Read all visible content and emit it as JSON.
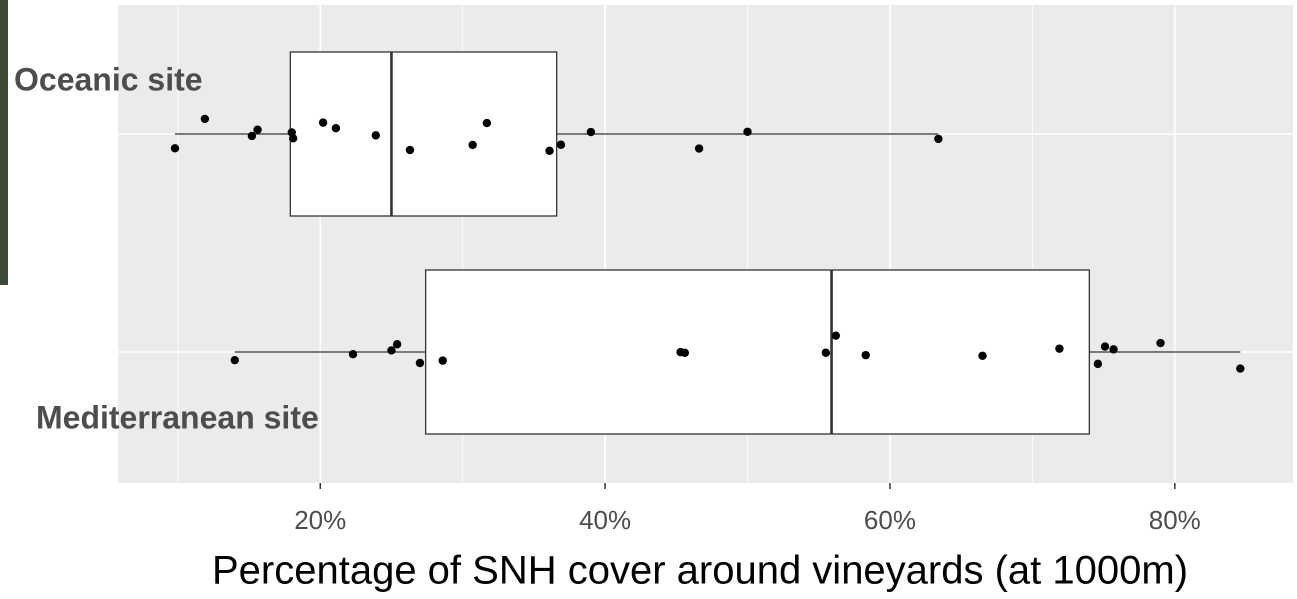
{
  "chart_data": {
    "type": "boxplot",
    "x_label": "Percentage of SNH cover around vineyards (at 1000m)",
    "categories": [
      "Oceanic site",
      "Mediterranean site"
    ],
    "boxes": [
      {
        "whisker_low": 9.8,
        "q1": 17.9,
        "median": 25.0,
        "q3": 36.6,
        "whisker_high": 63.4,
        "points": [
          9.8,
          11.9,
          15.2,
          15.6,
          18.0,
          18.1,
          20.2,
          21.1,
          23.9,
          26.3,
          30.7,
          31.7,
          36.1,
          36.9,
          39.0,
          46.6,
          50.0,
          63.4
        ]
      },
      {
        "whisker_low": 14.0,
        "q1": 27.4,
        "median": 55.9,
        "q3": 74.0,
        "whisker_high": 84.6,
        "points": [
          14.0,
          22.3,
          25.0,
          25.4,
          27.0,
          28.6,
          45.3,
          45.6,
          55.5,
          56.2,
          58.3,
          66.5,
          71.9,
          74.6,
          75.1,
          75.7,
          79.0,
          84.6
        ]
      }
    ],
    "xlim": [
      5.8,
      88.3
    ],
    "xticks": [
      {
        "value": 20,
        "label": "20%"
      },
      {
        "value": 40,
        "label": "40%"
      },
      {
        "value": 60,
        "label": "60%"
      },
      {
        "value": 80,
        "label": "80%"
      }
    ],
    "minor_xticks": [
      10,
      30,
      50,
      70
    ],
    "grid": true,
    "panel_color": "#ebebeb",
    "box_fill": "#ffffff",
    "point_color": "#000000"
  }
}
